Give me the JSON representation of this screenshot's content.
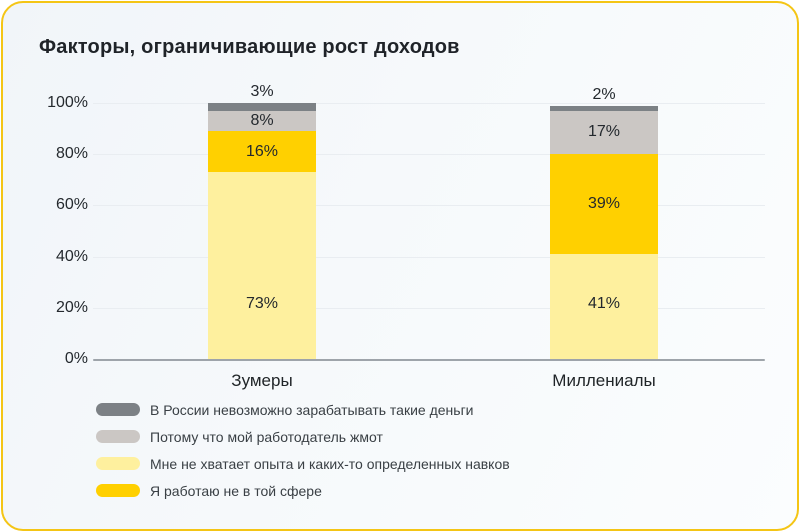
{
  "card": {
    "border_color": "#F4C515",
    "background_color": "#F5F8FB"
  },
  "chart_data": {
    "type": "bar",
    "variant": "stacked-percent",
    "title": "Факторы, ограничивающие рост доходов",
    "categories": [
      "Зумеры",
      "Миллениалы"
    ],
    "series": [
      {
        "name": "Мне не хватает опыта и каких-то определенных навков",
        "color": "#FEF09E",
        "values": [
          73,
          41
        ]
      },
      {
        "name": "Я работаю не в той сфере",
        "color": "#FFD000",
        "values": [
          16,
          39
        ]
      },
      {
        "name": "Потому что мой работодатель жмот",
        "color": "#CBC7C4",
        "values": [
          8,
          17
        ]
      },
      {
        "name": "В России невозможно зарабатывать такие деньги",
        "color": "#7C8185",
        "values": [
          3,
          2
        ]
      }
    ],
    "legend": [
      {
        "label": "В России невозможно зарабатывать такие деньги",
        "color": "#7C8185"
      },
      {
        "label": "Потому что мой работодатель жмот",
        "color": "#CBC7C4"
      },
      {
        "label": "Мне не хватает опыта и каких-то определенных навков",
        "color": "#FEF09E"
      },
      {
        "label": "Я работаю не в той сфере",
        "color": "#FFD000"
      }
    ],
    "yticks": [
      "0%",
      "20%",
      "40%",
      "60%",
      "80%",
      "100%"
    ],
    "ylim": [
      0,
      100
    ],
    "grid": true,
    "legend_position": "bottom-left",
    "value_suffix": "%",
    "bar_value_labels": {
      "Зумеры": [
        "73%",
        "16%",
        "8%",
        "3%"
      ],
      "Миллениалы": [
        "41%",
        "39%",
        "17%",
        "2%"
      ]
    }
  }
}
